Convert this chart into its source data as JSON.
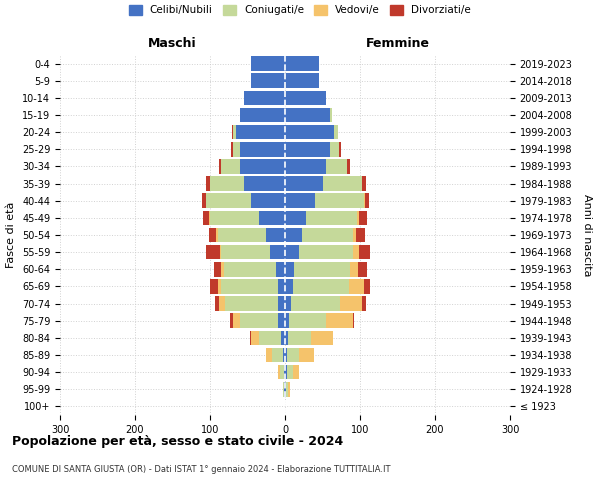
{
  "age_groups": [
    "100+",
    "95-99",
    "90-94",
    "85-89",
    "80-84",
    "75-79",
    "70-74",
    "65-69",
    "60-64",
    "55-59",
    "50-54",
    "45-49",
    "40-44",
    "35-39",
    "30-34",
    "25-29",
    "20-24",
    "15-19",
    "10-14",
    "5-9",
    "0-4"
  ],
  "birth_years": [
    "≤ 1923",
    "1924-1928",
    "1929-1933",
    "1934-1938",
    "1939-1943",
    "1944-1948",
    "1949-1953",
    "1954-1958",
    "1959-1963",
    "1964-1968",
    "1969-1973",
    "1974-1978",
    "1979-1983",
    "1984-1988",
    "1989-1993",
    "1994-1998",
    "1999-2003",
    "2004-2008",
    "2009-2013",
    "2014-2018",
    "2019-2023"
  ],
  "males": {
    "celibi": [
      0,
      1,
      2,
      3,
      5,
      10,
      10,
      10,
      12,
      20,
      25,
      35,
      45,
      55,
      60,
      60,
      65,
      60,
      55,
      45,
      45
    ],
    "coniugati": [
      0,
      2,
      5,
      15,
      30,
      50,
      70,
      75,
      70,
      65,
      65,
      65,
      60,
      45,
      25,
      10,
      5,
      0,
      0,
      0,
      0
    ],
    "vedovi": [
      0,
      0,
      2,
      8,
      10,
      10,
      8,
      5,
      3,
      2,
      2,
      2,
      1,
      0,
      0,
      0,
      0,
      0,
      0,
      0,
      0
    ],
    "divorziati": [
      0,
      0,
      0,
      0,
      2,
      3,
      5,
      10,
      10,
      18,
      10,
      8,
      5,
      5,
      3,
      2,
      1,
      0,
      0,
      0,
      0
    ]
  },
  "females": {
    "nubili": [
      0,
      1,
      2,
      3,
      4,
      5,
      8,
      10,
      12,
      18,
      22,
      28,
      40,
      50,
      55,
      60,
      65,
      60,
      55,
      45,
      45
    ],
    "coniugate": [
      0,
      3,
      8,
      15,
      30,
      50,
      65,
      75,
      75,
      72,
      68,
      68,
      65,
      52,
      28,
      12,
      5,
      2,
      0,
      0,
      0
    ],
    "vedove": [
      0,
      2,
      8,
      20,
      30,
      35,
      30,
      20,
      10,
      8,
      5,
      3,
      2,
      1,
      0,
      0,
      0,
      0,
      0,
      0,
      0
    ],
    "divorziate": [
      0,
      0,
      0,
      0,
      0,
      2,
      5,
      8,
      12,
      15,
      12,
      10,
      5,
      5,
      3,
      2,
      1,
      0,
      0,
      0,
      0
    ]
  },
  "colors": {
    "celibi": "#4472c4",
    "coniugati": "#c5d99a",
    "vedovi": "#f5c36b",
    "divorziati": "#c0392b"
  },
  "xlim": 300,
  "title": "Popolazione per età, sesso e stato civile - 2024",
  "subtitle": "COMUNE DI SANTA GIUSTA (OR) - Dati ISTAT 1° gennaio 2024 - Elaborazione TUTTITALIA.IT",
  "xlabel_left": "Maschi",
  "xlabel_right": "Femmine",
  "ylabel_left": "Fasce di età",
  "ylabel_right": "Anni di nascita",
  "legend_labels": [
    "Celibi/Nubili",
    "Coniugati/e",
    "Vedovi/e",
    "Divorziati/e"
  ],
  "bg_color": "#ffffff",
  "grid_color": "#cccccc"
}
